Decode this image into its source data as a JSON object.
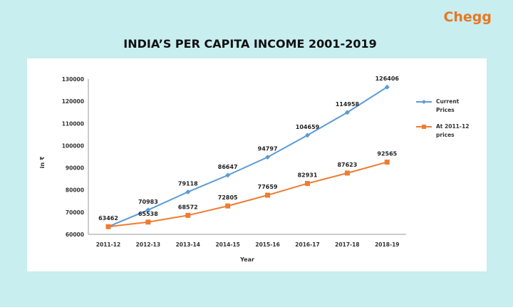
{
  "brand": "Chegg",
  "colors": {
    "background": "#c8eef0",
    "brand": "#e87722",
    "current": "#5b9bd5",
    "constant": "#ed7d31"
  },
  "chart_data": {
    "type": "line",
    "title": "INDIA’S PER CAPITA INCOME 2001-2019",
    "xlabel": "Year",
    "ylabel": "in ₹",
    "ylim": [
      60000,
      130000
    ],
    "yticks": [
      60000,
      70000,
      80000,
      90000,
      100000,
      110000,
      120000,
      130000
    ],
    "categories": [
      "2011-12",
      "2012-13",
      "2013-14",
      "2014-15",
      "2015-16",
      "2016-17",
      "2017-18",
      "2018-19"
    ],
    "grid": false,
    "legend": "right",
    "series": [
      {
        "name": "Current Prices",
        "legend_lines": [
          "Current",
          "Prices"
        ],
        "color": "#5b9bd5",
        "marker": "diamond",
        "values": [
          63462,
          70983,
          79118,
          86647,
          94797,
          104659,
          114958,
          126406
        ]
      },
      {
        "name": "At 2011-12 prices",
        "legend_lines": [
          "At 2011-12",
          "prices"
        ],
        "color": "#ed7d31",
        "marker": "square",
        "values": [
          63462,
          65538,
          68572,
          72805,
          77659,
          82931,
          87623,
          92565
        ]
      }
    ]
  }
}
